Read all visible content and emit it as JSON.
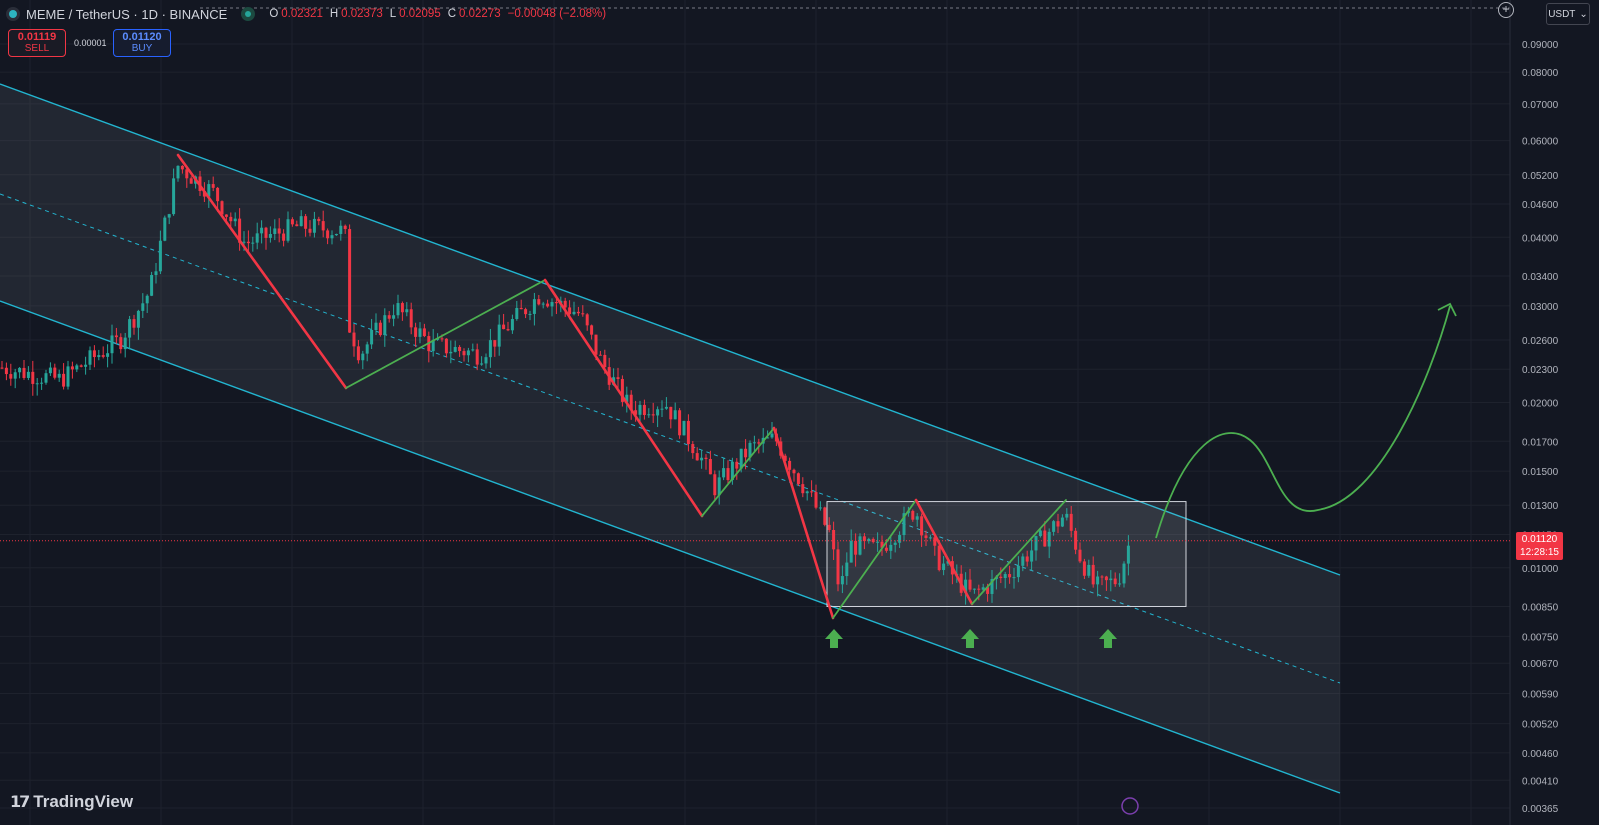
{
  "header": {
    "symbol": "MEME / TetherUS · 1D · BINANCE",
    "open_label": "O",
    "open": "0.02321",
    "high_label": "H",
    "high": "0.02373",
    "low_label": "L",
    "low": "0.02095",
    "close_label": "C",
    "close": "0.02273",
    "change": "−0.00048 (−2.08%)"
  },
  "trade": {
    "sell_price": "0.01119",
    "sell_label": "SELL",
    "spread": "0.00001",
    "buy_price": "0.01120",
    "buy_label": "BUY"
  },
  "currency": {
    "value": "USDT"
  },
  "price_tag": {
    "price": "0.01120",
    "countdown": "12:28:15"
  },
  "branding": {
    "logo": "TradingView"
  },
  "colors": {
    "background": "#131722",
    "bull": "#26a69a",
    "bear": "#f23645",
    "channel": "#22b5d0",
    "zigzag_down": "#f23645",
    "zigzag_up": "#4caf50",
    "arrow": "#4caf50"
  },
  "chart_data": {
    "type": "candlestick",
    "y_scale": "log",
    "ylim": [
      0.00365,
      0.095
    ],
    "y_ticks": [
      "0.09000",
      "0.08000",
      "0.07000",
      "0.06000",
      "0.05200",
      "0.04600",
      "0.04000",
      "0.03400",
      "0.03000",
      "0.02600",
      "0.02300",
      "0.02000",
      "0.01700",
      "0.01500",
      "0.01300",
      "0.01150",
      "0.01000",
      "0.00850",
      "0.00750",
      "0.00670",
      "0.00590",
      "0.00520",
      "0.00460",
      "0.00410",
      "0.00365"
    ],
    "current_price": 0.0112,
    "swing_points": [
      {
        "price": 0.0565,
        "dir": "high"
      },
      {
        "price": 0.0215,
        "dir": "low"
      },
      {
        "price": 0.033,
        "dir": "high"
      },
      {
        "price": 0.0124,
        "dir": "low"
      },
      {
        "price": 0.0178,
        "dir": "high"
      },
      {
        "price": 0.0084,
        "dir": "low"
      },
      {
        "price": 0.0133,
        "dir": "high"
      },
      {
        "price": 0.0084,
        "dir": "low"
      },
      {
        "price": 0.013,
        "dir": "high"
      }
    ],
    "range_box": {
      "top": 0.0132,
      "bottom": 0.0085
    },
    "projection_target": 0.03,
    "support_arrows": 3
  }
}
